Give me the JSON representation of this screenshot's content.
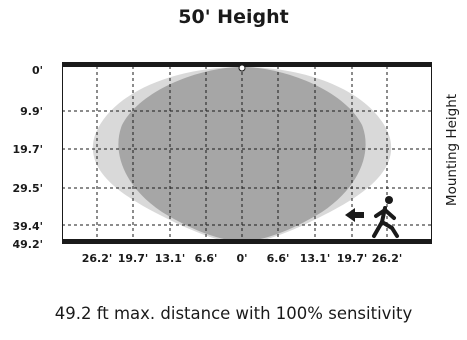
{
  "title": "50' Height",
  "caption": "49.2 ft max. distance with 100% sensitivity",
  "side_label": "Mounting Height",
  "y_labels": [
    "0'",
    "9.9'",
    "19.7'",
    "29.5'",
    "39.4'",
    "49.2'"
  ],
  "x_labels": [
    "26.2'",
    "19.7'",
    "13.1'",
    "6.6'",
    "0'",
    "6.6'",
    "13.1'",
    "19.7'",
    "26.2'"
  ],
  "colors": {
    "outer_zone": "#d9d9d9",
    "inner_zone": "#a6a6a6",
    "frame": "#1a1a1a"
  },
  "icons": [
    "sensor-icon",
    "arrow-left-icon",
    "walking-person-icon"
  ]
}
